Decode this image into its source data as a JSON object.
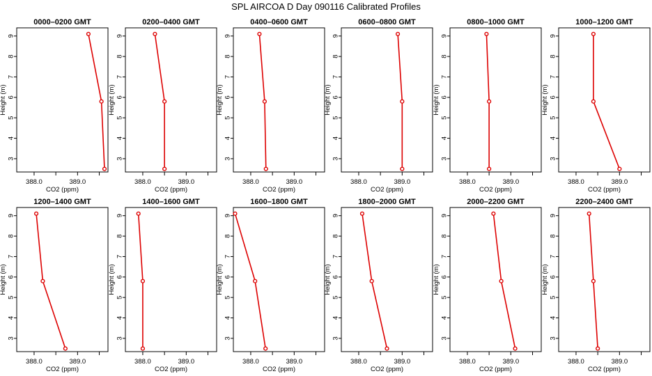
{
  "chart_data": {
    "type": "line",
    "title": "SPL AIRCOA D  Day 090116  Calibrated Profiles",
    "xlabel": "CO2 (ppm)",
    "ylabel": "Height (m)",
    "xlim": [
      387.6,
      389.7
    ],
    "ylim": [
      2.35,
      9.4
    ],
    "xticks": [
      388.0,
      389.0
    ],
    "xtick_labels": [
      "388.0",
      "389.0"
    ],
    "yticks": [
      3,
      4,
      5,
      6,
      7,
      8,
      9
    ],
    "line_color": "#dd0000",
    "heights": [
      2.5,
      5.8,
      9.1
    ],
    "panels": [
      {
        "title": "0000–0200 GMT",
        "co2": [
          389.62,
          389.55,
          389.25
        ]
      },
      {
        "title": "0200–0400 GMT",
        "co2": [
          388.5,
          388.5,
          388.28
        ]
      },
      {
        "title": "0400–0600 GMT",
        "co2": [
          388.35,
          388.32,
          388.2
        ]
      },
      {
        "title": "0600–0800 GMT",
        "co2": [
          389.0,
          389.0,
          388.9
        ]
      },
      {
        "title": "0800–1000 GMT",
        "co2": [
          388.5,
          388.5,
          388.44
        ]
      },
      {
        "title": "1000–1200 GMT",
        "co2": [
          389.0,
          388.4,
          388.4
        ]
      },
      {
        "title": "1200–1400 GMT",
        "co2": [
          388.72,
          388.2,
          388.05
        ]
      },
      {
        "title": "1400–1600 GMT",
        "co2": [
          388.0,
          388.0,
          387.9
        ]
      },
      {
        "title": "1600–1800 GMT",
        "co2": [
          388.34,
          388.1,
          387.64
        ]
      },
      {
        "title": "1800–2000 GMT",
        "co2": [
          388.65,
          388.3,
          388.08
        ]
      },
      {
        "title": "2000–2200 GMT",
        "co2": [
          389.1,
          388.78,
          388.6
        ]
      },
      {
        "title": "2200–2400 GMT",
        "co2": [
          388.5,
          388.4,
          388.3
        ]
      }
    ]
  }
}
